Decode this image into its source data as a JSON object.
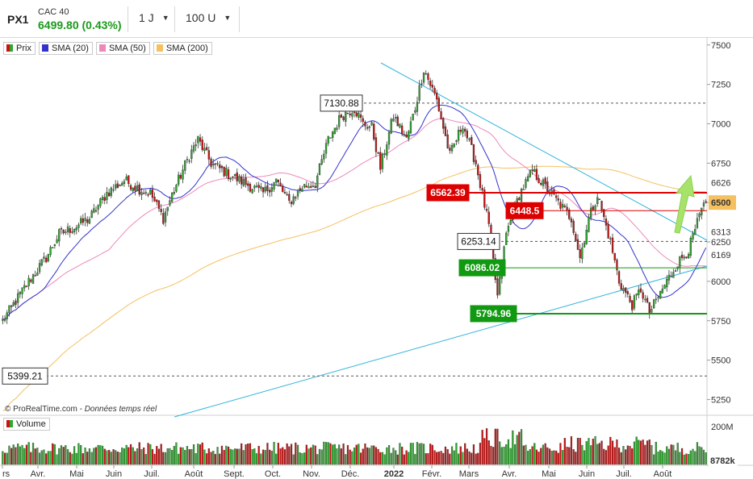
{
  "header": {
    "symbol": "PX1",
    "name": "CAC 40",
    "price": "6499.80 (0.43%)",
    "interval": "1 J",
    "units": "100 U"
  },
  "legend": [
    {
      "label": "Prix",
      "color": "#2ea82e"
    },
    {
      "label": "SMA (20)",
      "color": "#3333cc"
    },
    {
      "label": "SMA (50)",
      "color": "#ee88bb"
    },
    {
      "label": "SMA (200)",
      "color": "#f5c060"
    }
  ],
  "volume_legend": {
    "label": "Volume",
    "color": "#2ea82e"
  },
  "credit": {
    "site": "© ProRealTime.com",
    "note": "Données temps réel"
  },
  "colors": {
    "up": "#2ea82e",
    "down": "#cc1111",
    "trend": "#30b4dc",
    "sma20": "#3333cc",
    "sma50": "#ee88bb",
    "sma200": "#f5c060",
    "resistance": "#dd0000",
    "support": "#119911"
  },
  "chart_data": {
    "type": "candlestick",
    "y_ticks": [
      7500,
      7250,
      7000,
      6750,
      6500,
      6250,
      6000,
      5750,
      5500,
      5250
    ],
    "ylim": [
      5150,
      7550
    ],
    "x_ticks": [
      "rs",
      "Avr.",
      "Mai",
      "Juin",
      "Juil.",
      "Août",
      "Sept.",
      "Oct.",
      "Nov.",
      "Déc.",
      "2022",
      "Févr.",
      "Mars",
      "Avr.",
      "Mai",
      "Juin",
      "Juil.",
      "Août"
    ],
    "x_tick_bold": "2022",
    "price_axis_labels": [
      {
        "value": 6626,
        "text": "6626",
        "style": "plain"
      },
      {
        "value": 6500,
        "text": "6500",
        "style": "price"
      },
      {
        "value": 6313,
        "text": "6313",
        "style": "plain"
      },
      {
        "value": 6169,
        "text": "6169",
        "style": "pink"
      }
    ],
    "levels": [
      {
        "value": 7130.88,
        "label": "7130.88",
        "kind": "dashed"
      },
      {
        "value": 6562.39,
        "label": "6562.39",
        "kind": "resistance"
      },
      {
        "value": 6448.5,
        "label": "6448.5",
        "kind": "resistance-thin"
      },
      {
        "value": 6253.14,
        "label": "6253.14",
        "kind": "dashed"
      },
      {
        "value": 6086.02,
        "label": "6086.02",
        "kind": "support"
      },
      {
        "value": 5794.96,
        "label": "5794.96",
        "kind": "support"
      },
      {
        "value": 5399.21,
        "label": "5399.21",
        "kind": "dashed"
      }
    ],
    "series_keys": [
      {
        "t": 0,
        "c": 5750
      },
      {
        "t": 12,
        "c": 6000
      },
      {
        "t": 20,
        "c": 6150
      },
      {
        "t": 26,
        "c": 6300
      },
      {
        "t": 34,
        "c": 6350
      },
      {
        "t": 40,
        "c": 6400
      },
      {
        "t": 48,
        "c": 6560
      },
      {
        "t": 56,
        "c": 6640
      },
      {
        "t": 64,
        "c": 6580
      },
      {
        "t": 68,
        "c": 6560
      },
      {
        "t": 74,
        "c": 6400
      },
      {
        "t": 78,
        "c": 6550
      },
      {
        "t": 86,
        "c": 6800
      },
      {
        "t": 90,
        "c": 6900
      },
      {
        "t": 96,
        "c": 6750
      },
      {
        "t": 104,
        "c": 6680
      },
      {
        "t": 112,
        "c": 6620
      },
      {
        "t": 120,
        "c": 6560
      },
      {
        "t": 126,
        "c": 6640
      },
      {
        "t": 132,
        "c": 6500
      },
      {
        "t": 138,
        "c": 6600
      },
      {
        "t": 144,
        "c": 6620
      },
      {
        "t": 150,
        "c": 6900
      },
      {
        "t": 156,
        "c": 7050
      },
      {
        "t": 162,
        "c": 7100
      },
      {
        "t": 166,
        "c": 7000
      },
      {
        "t": 170,
        "c": 6980
      },
      {
        "t": 174,
        "c": 6720
      },
      {
        "t": 180,
        "c": 7050
      },
      {
        "t": 186,
        "c": 6900
      },
      {
        "t": 190,
        "c": 7100
      },
      {
        "t": 194,
        "c": 7350
      },
      {
        "t": 200,
        "c": 7150
      },
      {
        "t": 206,
        "c": 6800
      },
      {
        "t": 212,
        "c": 7000
      },
      {
        "t": 218,
        "c": 6750
      },
      {
        "t": 224,
        "c": 6350
      },
      {
        "t": 228,
        "c": 5900
      },
      {
        "t": 232,
        "c": 6300
      },
      {
        "t": 238,
        "c": 6550
      },
      {
        "t": 244,
        "c": 6700
      },
      {
        "t": 250,
        "c": 6600
      },
      {
        "t": 256,
        "c": 6500
      },
      {
        "t": 262,
        "c": 6400
      },
      {
        "t": 266,
        "c": 6150
      },
      {
        "t": 270,
        "c": 6400
      },
      {
        "t": 274,
        "c": 6550
      },
      {
        "t": 280,
        "c": 6250
      },
      {
        "t": 284,
        "c": 6000
      },
      {
        "t": 290,
        "c": 5850
      },
      {
        "t": 294,
        "c": 5950
      },
      {
        "t": 298,
        "c": 5800
      },
      {
        "t": 304,
        "c": 5950
      },
      {
        "t": 310,
        "c": 6100
      },
      {
        "t": 316,
        "c": 6200
      },
      {
        "t": 322,
        "c": 6450
      },
      {
        "t": 324,
        "c": 6500
      }
    ],
    "volume": {
      "ticks": [
        "200M"
      ],
      "last_label": "8782k"
    }
  }
}
